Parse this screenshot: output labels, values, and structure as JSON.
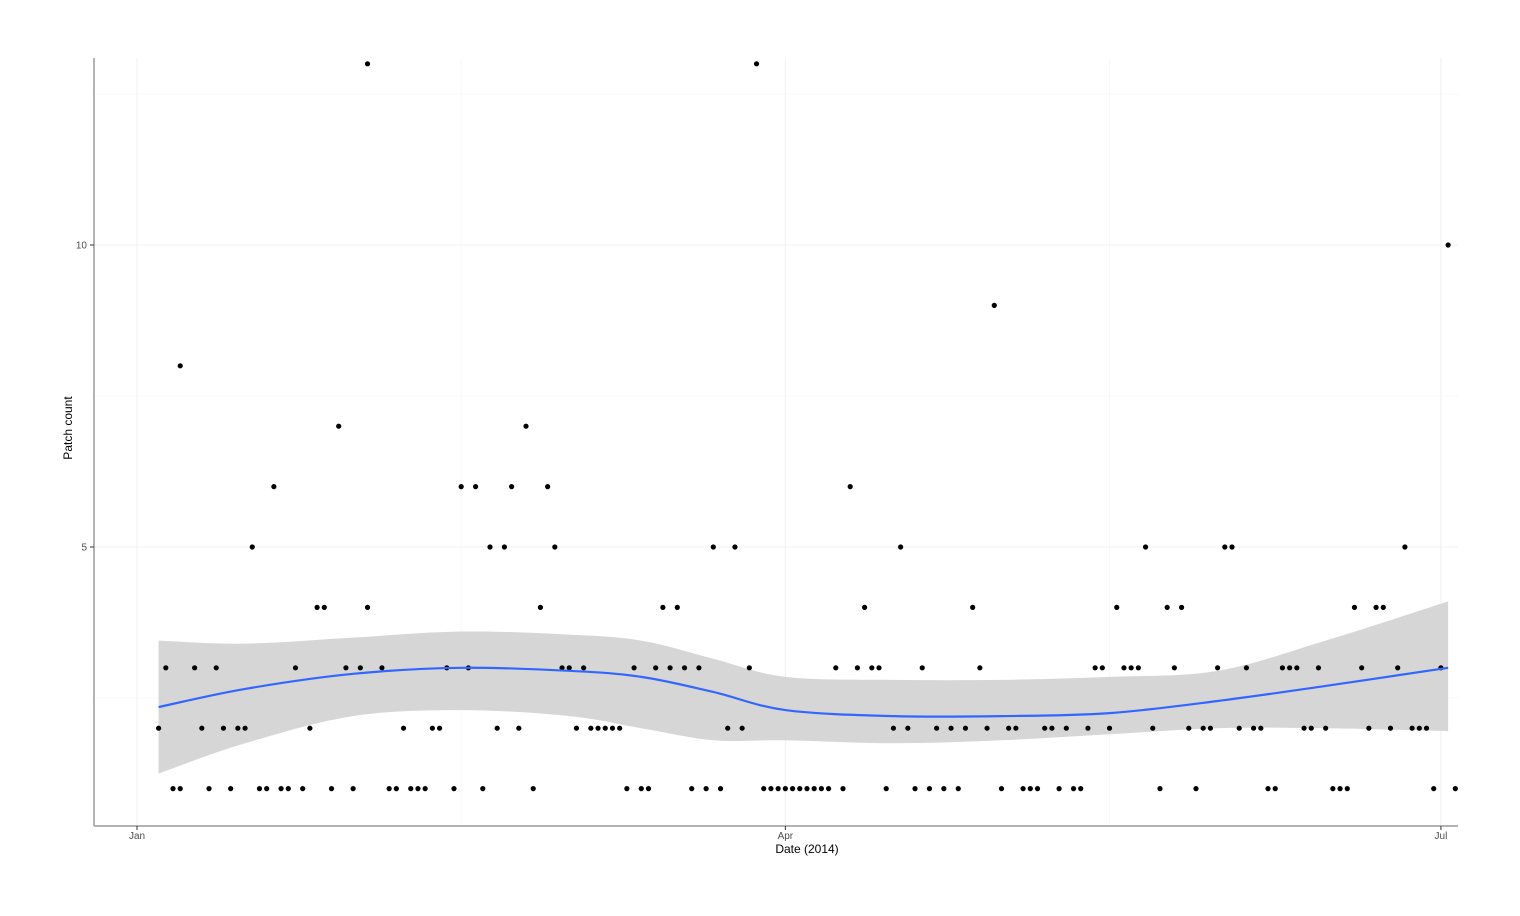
{
  "chart_data": {
    "type": "scatter",
    "title": "",
    "xlabel": "Date (2014)",
    "ylabel": "Patch count",
    "x_ticks": [
      {
        "label": "Jan",
        "day": 0
      },
      {
        "label": "Apr",
        "day": 90
      },
      {
        "label": "Jul",
        "day": 181
      }
    ],
    "y_ticks": [
      5,
      10
    ],
    "xlim_days": [
      -6,
      182.5
    ],
    "ylim": [
      0.4,
      13.2
    ],
    "grid": true,
    "smooth": {
      "method": "loess",
      "color": "#3366FF",
      "band_color": "#d6d6d6",
      "days": [
        3,
        15,
        30,
        45,
        60,
        70,
        80,
        90,
        105,
        120,
        135,
        150,
        165,
        182
      ],
      "fit": [
        2.35,
        2.65,
        2.9,
        3.0,
        2.95,
        2.85,
        2.6,
        2.3,
        2.2,
        2.2,
        2.25,
        2.45,
        2.7,
        3.0
      ],
      "lower": [
        1.25,
        1.75,
        2.2,
        2.3,
        2.2,
        2.0,
        1.8,
        1.8,
        1.75,
        1.8,
        1.9,
        2.0,
        2.0,
        1.95
      ],
      "upper": [
        3.45,
        3.4,
        3.5,
        3.6,
        3.55,
        3.45,
        3.15,
        2.85,
        2.8,
        2.8,
        2.85,
        2.95,
        3.45,
        4.1
      ]
    },
    "points": [
      [
        3,
        2
      ],
      [
        4,
        3
      ],
      [
        5,
        1
      ],
      [
        6,
        1
      ],
      [
        6,
        8
      ],
      [
        8,
        3
      ],
      [
        9,
        2
      ],
      [
        10,
        1
      ],
      [
        11,
        3
      ],
      [
        12,
        2
      ],
      [
        13,
        1
      ],
      [
        14,
        2
      ],
      [
        15,
        2
      ],
      [
        16,
        5
      ],
      [
        17,
        1
      ],
      [
        18,
        1
      ],
      [
        19,
        6
      ],
      [
        20,
        1
      ],
      [
        21,
        1
      ],
      [
        22,
        3
      ],
      [
        23,
        1
      ],
      [
        24,
        2
      ],
      [
        25,
        4
      ],
      [
        26,
        4
      ],
      [
        27,
        1
      ],
      [
        28,
        7
      ],
      [
        29,
        3
      ],
      [
        30,
        1
      ],
      [
        31,
        3
      ],
      [
        32,
        4
      ],
      [
        32,
        13
      ],
      [
        34,
        3
      ],
      [
        35,
        1
      ],
      [
        36,
        1
      ],
      [
        37,
        2
      ],
      [
        38,
        1
      ],
      [
        39,
        1
      ],
      [
        40,
        1
      ],
      [
        41,
        2
      ],
      [
        42,
        2
      ],
      [
        43,
        3
      ],
      [
        44,
        1
      ],
      [
        45,
        6
      ],
      [
        46,
        3
      ],
      [
        47,
        6
      ],
      [
        48,
        1
      ],
      [
        49,
        5
      ],
      [
        50,
        2
      ],
      [
        51,
        5
      ],
      [
        52,
        6
      ],
      [
        53,
        2
      ],
      [
        54,
        7
      ],
      [
        55,
        1
      ],
      [
        56,
        4
      ],
      [
        57,
        6
      ],
      [
        58,
        5
      ],
      [
        59,
        3
      ],
      [
        60,
        3
      ],
      [
        61,
        2
      ],
      [
        62,
        3
      ],
      [
        63,
        2
      ],
      [
        64,
        2
      ],
      [
        65,
        2
      ],
      [
        66,
        2
      ],
      [
        67,
        2
      ],
      [
        68,
        1
      ],
      [
        69,
        3
      ],
      [
        70,
        1
      ],
      [
        71,
        1
      ],
      [
        72,
        3
      ],
      [
        73,
        4
      ],
      [
        74,
        3
      ],
      [
        75,
        4
      ],
      [
        76,
        3
      ],
      [
        77,
        1
      ],
      [
        78,
        3
      ],
      [
        79,
        1
      ],
      [
        80,
        5
      ],
      [
        81,
        1
      ],
      [
        82,
        2
      ],
      [
        83,
        5
      ],
      [
        84,
        2
      ],
      [
        85,
        3
      ],
      [
        86,
        13
      ],
      [
        87,
        1
      ],
      [
        88,
        1
      ],
      [
        89,
        1
      ],
      [
        90,
        1
      ],
      [
        91,
        1
      ],
      [
        92,
        1
      ],
      [
        93,
        1
      ],
      [
        94,
        1
      ],
      [
        95,
        1
      ],
      [
        96,
        1
      ],
      [
        97,
        3
      ],
      [
        98,
        1
      ],
      [
        99,
        6
      ],
      [
        100,
        3
      ],
      [
        101,
        4
      ],
      [
        102,
        3
      ],
      [
        103,
        3
      ],
      [
        104,
        1
      ],
      [
        105,
        2
      ],
      [
        106,
        5
      ],
      [
        107,
        2
      ],
      [
        108,
        1
      ],
      [
        109,
        3
      ],
      [
        110,
        1
      ],
      [
        111,
        2
      ],
      [
        112,
        1
      ],
      [
        113,
        2
      ],
      [
        114,
        1
      ],
      [
        115,
        2
      ],
      [
        116,
        4
      ],
      [
        117,
        3
      ],
      [
        118,
        2
      ],
      [
        119,
        9
      ],
      [
        120,
        1
      ],
      [
        121,
        2
      ],
      [
        122,
        2
      ],
      [
        123,
        1
      ],
      [
        124,
        1
      ],
      [
        125,
        1
      ],
      [
        126,
        2
      ],
      [
        127,
        2
      ],
      [
        128,
        1
      ],
      [
        129,
        2
      ],
      [
        130,
        1
      ],
      [
        131,
        1
      ],
      [
        132,
        2
      ],
      [
        133,
        3
      ],
      [
        134,
        3
      ],
      [
        135,
        2
      ],
      [
        136,
        4
      ],
      [
        137,
        3
      ],
      [
        138,
        3
      ],
      [
        139,
        3
      ],
      [
        140,
        5
      ],
      [
        141,
        2
      ],
      [
        142,
        1
      ],
      [
        143,
        4
      ],
      [
        144,
        3
      ],
      [
        145,
        4
      ],
      [
        146,
        2
      ],
      [
        147,
        1
      ],
      [
        148,
        2
      ],
      [
        149,
        2
      ],
      [
        150,
        3
      ],
      [
        151,
        5
      ],
      [
        152,
        5
      ],
      [
        153,
        2
      ],
      [
        154,
        3
      ],
      [
        155,
        2
      ],
      [
        156,
        2
      ],
      [
        157,
        1
      ],
      [
        158,
        1
      ],
      [
        159,
        3
      ],
      [
        160,
        3
      ],
      [
        161,
        3
      ],
      [
        162,
        2
      ],
      [
        163,
        2
      ],
      [
        164,
        3
      ],
      [
        165,
        2
      ],
      [
        166,
        1
      ],
      [
        167,
        1
      ],
      [
        168,
        1
      ],
      [
        169,
        4
      ],
      [
        170,
        3
      ],
      [
        171,
        2
      ],
      [
        172,
        4
      ],
      [
        173,
        4
      ],
      [
        174,
        2
      ],
      [
        175,
        3
      ],
      [
        176,
        5
      ],
      [
        177,
        2
      ],
      [
        178,
        2
      ],
      [
        179,
        2
      ],
      [
        180,
        1
      ],
      [
        181,
        3
      ],
      [
        182,
        10
      ],
      [
        183,
        1
      ]
    ]
  }
}
